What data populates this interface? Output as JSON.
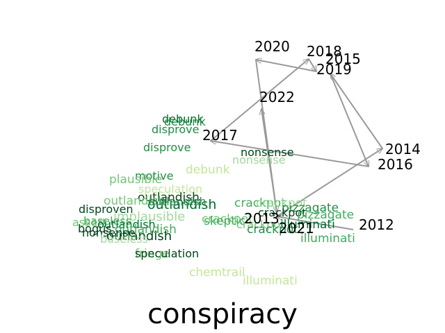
{
  "title": "conspiracy",
  "colors": {
    "year_label": "#000000",
    "path": "#999999",
    "word_palette": [
      "#c2e699",
      "#a1d99b",
      "#74c476",
      "#41ab5d",
      "#238b45",
      "#006d2c",
      "#00441b"
    ]
  },
  "year_path": [
    "2012",
    "2013",
    "2014",
    "2015",
    "2016",
    "2017",
    "2018",
    "2019",
    "2020",
    "2021",
    "2022"
  ],
  "years": [
    {
      "label": "2020"
    },
    {
      "label": "2018"
    },
    {
      "label": "2015"
    },
    {
      "label": "2019"
    },
    {
      "label": "2022"
    },
    {
      "label": "2017"
    },
    {
      "label": "2014"
    },
    {
      "label": "2016"
    },
    {
      "label": "2013"
    },
    {
      "label": "2021"
    },
    {
      "label": "2012"
    }
  ],
  "words": [
    {
      "text": "debunk",
      "shade": 5
    },
    {
      "text": "debunk",
      "shade": 4
    },
    {
      "text": "disprove",
      "shade": 4
    },
    {
      "text": "disprove",
      "shade": 4
    },
    {
      "text": "nonsense",
      "shade": 6
    },
    {
      "text": "nonsense",
      "shade": 1
    },
    {
      "text": "debunk",
      "shade": 0
    },
    {
      "text": "motive",
      "shade": 4
    },
    {
      "text": "plausible",
      "shade": 2
    },
    {
      "text": "speculation",
      "shade": 0
    },
    {
      "text": "outlandish",
      "shade": 6
    },
    {
      "text": "outlandish",
      "shade": 2
    },
    {
      "text": "outlandish",
      "shade": 5
    },
    {
      "text": "outlandish",
      "shade": 4
    },
    {
      "text": "disproven",
      "shade": 6
    },
    {
      "text": "implausible",
      "shade": 1
    },
    {
      "text": "assert",
      "shade": 2
    },
    {
      "text": "baseless",
      "shade": 3
    },
    {
      "text": "outlandish",
      "shade": 5
    },
    {
      "text": "bogus",
      "shade": 6
    },
    {
      "text": "outlandish",
      "shade": 3
    },
    {
      "text": "nonsense",
      "shade": 6
    },
    {
      "text": "outlandish",
      "shade": 6
    },
    {
      "text": "baseless",
      "shade": 1
    },
    {
      "text": "fringe",
      "shade": 2
    },
    {
      "text": "speculation",
      "shade": 6
    },
    {
      "text": "crackpot",
      "shade": 3
    },
    {
      "text": "crackpot",
      "shade": 1
    },
    {
      "text": "pizzagate",
      "shade": 4
    },
    {
      "text": "crackpot",
      "shade": 6
    },
    {
      "text": "pizzagate",
      "shade": 3
    },
    {
      "text": "crackpot",
      "shade": 2
    },
    {
      "text": "skeptic",
      "shade": 3
    },
    {
      "text": "crackpot",
      "shade": 2
    },
    {
      "text": "illuminati",
      "shade": 5
    },
    {
      "text": "crackpot",
      "shade": 4
    },
    {
      "text": "illuminati",
      "shade": 3
    },
    {
      "text": "chemtrail",
      "shade": 0
    },
    {
      "text": "illuminati",
      "shade": 0
    }
  ]
}
